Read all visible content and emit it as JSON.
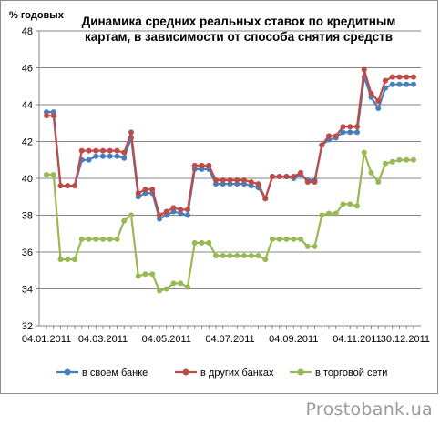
{
  "chart_data": {
    "type": "line",
    "title_lines": [
      "Динамика средних реальных ставок по кредитным",
      "картам, в зависимости от способа снятия средств"
    ],
    "ylabel": "% годовых",
    "ylim": [
      32,
      48
    ],
    "yticks": [
      32,
      34,
      36,
      38,
      40,
      42,
      44,
      46,
      48
    ],
    "x_tick_labels": [
      "04.01.2011",
      "04.03.2011",
      "04.05.2011",
      "04.07.2011",
      "04.09.2011",
      "04.11.2011",
      "30.12.2011"
    ],
    "x_tick_index": [
      0,
      8,
      17,
      26,
      35,
      44,
      52
    ],
    "grid": "horizontal",
    "legend_position": "bottom",
    "series": [
      {
        "name": "в своем банке",
        "color": "#4a7ebb",
        "values": [
          43.6,
          43.6,
          39.6,
          39.6,
          39.6,
          41.0,
          41.0,
          41.2,
          41.2,
          41.2,
          41.2,
          41.1,
          42.2,
          39.0,
          39.2,
          39.2,
          37.8,
          38.0,
          38.2,
          38.1,
          38.0,
          40.5,
          40.5,
          40.5,
          39.7,
          39.7,
          39.7,
          39.7,
          39.7,
          39.6,
          39.5,
          38.9,
          40.1,
          40.1,
          40.1,
          40.0,
          40.2,
          39.9,
          39.9,
          41.8,
          42.1,
          42.2,
          42.5,
          42.5,
          42.5,
          45.5,
          44.4,
          43.8,
          44.9,
          45.1,
          45.1,
          45.1,
          45.1
        ]
      },
      {
        "name": "в других банках",
        "color": "#be4b48",
        "values": [
          43.4,
          43.4,
          39.6,
          39.6,
          39.6,
          41.5,
          41.5,
          41.5,
          41.5,
          41.5,
          41.5,
          41.4,
          42.5,
          39.2,
          39.4,
          39.4,
          38.0,
          38.2,
          38.4,
          38.3,
          38.3,
          40.7,
          40.7,
          40.7,
          39.9,
          39.9,
          39.9,
          39.9,
          39.9,
          39.8,
          39.7,
          38.9,
          40.1,
          40.1,
          40.1,
          40.1,
          40.3,
          39.8,
          39.8,
          41.8,
          42.3,
          42.3,
          42.8,
          42.8,
          42.8,
          45.9,
          44.6,
          44.2,
          45.3,
          45.5,
          45.5,
          45.5,
          45.5
        ]
      },
      {
        "name": "в торговой сети",
        "color": "#98b954",
        "values": [
          40.2,
          40.2,
          35.6,
          35.6,
          35.6,
          36.7,
          36.7,
          36.7,
          36.7,
          36.7,
          36.7,
          37.7,
          38.0,
          34.7,
          34.8,
          34.8,
          33.9,
          34.0,
          34.3,
          34.3,
          34.1,
          36.5,
          36.5,
          36.5,
          35.8,
          35.8,
          35.8,
          35.8,
          35.8,
          35.8,
          35.8,
          35.6,
          36.7,
          36.7,
          36.7,
          36.7,
          36.7,
          36.3,
          36.3,
          38.0,
          38.1,
          38.1,
          38.6,
          38.6,
          38.5,
          41.4,
          40.3,
          39.8,
          40.8,
          40.9,
          41.0,
          41.0,
          41.0
        ]
      }
    ]
  },
  "footer": {
    "brand": "Prostobank.ua"
  }
}
